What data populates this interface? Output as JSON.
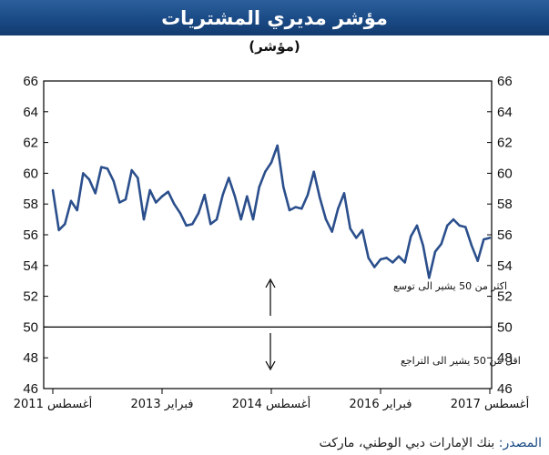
{
  "title": "مؤشر مديري المشتريات",
  "subtitle": "(مؤشر)",
  "source_label": "المصدر:",
  "source_text": "بنك الإمارات دبي الوطني، ماركت",
  "colors": {
    "header_bg": "#1a4a85",
    "line": "#2b4f8c",
    "axis": "#000000",
    "text": "#111111"
  },
  "chart_data": {
    "type": "line",
    "title": "مؤشر مديري المشتريات",
    "ylabel": "(مؤشر)",
    "ylim": [
      46,
      66
    ],
    "yticks": [
      46,
      48,
      50,
      52,
      54,
      56,
      58,
      60,
      62,
      64,
      66
    ],
    "grid": false,
    "legend": "none",
    "x_tick_labels": [
      "أغسطس 2011",
      "فبراير 2013",
      "أغسطس 2014",
      "فبراير 2016",
      "أغسطس 2017"
    ],
    "x_start": "2011-08",
    "x_end": "2017-08",
    "reference_line": 50,
    "annotations": [
      {
        "text": "اكثر من 50 يشير الى توسع",
        "arrow": "up"
      },
      {
        "text": "اقل من 50 يشير الى التراجع",
        "arrow": "down"
      }
    ],
    "series": [
      {
        "values": [
          58.9,
          56.3,
          56.7,
          58.2,
          57.6,
          60.0,
          59.6,
          58.7,
          60.4,
          60.3,
          59.5,
          58.1,
          58.3,
          60.2,
          59.7,
          57.0,
          58.9,
          58.1,
          58.5,
          58.8,
          58.0,
          57.4,
          56.6,
          56.7,
          57.4,
          58.6,
          56.7,
          57.0,
          58.6,
          59.7,
          58.5,
          57.0,
          58.5,
          57.0,
          59.1,
          60.1,
          60.7,
          61.8,
          59.1,
          57.6,
          57.8,
          57.7,
          58.6,
          60.1,
          58.4,
          57.0,
          56.2,
          57.7,
          58.7,
          56.4,
          55.8,
          56.3,
          54.5,
          53.9,
          54.4,
          54.5,
          54.2,
          54.6,
          54.2,
          55.9,
          56.6,
          55.3,
          53.2,
          54.9,
          55.4,
          56.6,
          57.0,
          56.6,
          56.5,
          55.3,
          54.3,
          55.7,
          55.8
        ]
      }
    ]
  }
}
